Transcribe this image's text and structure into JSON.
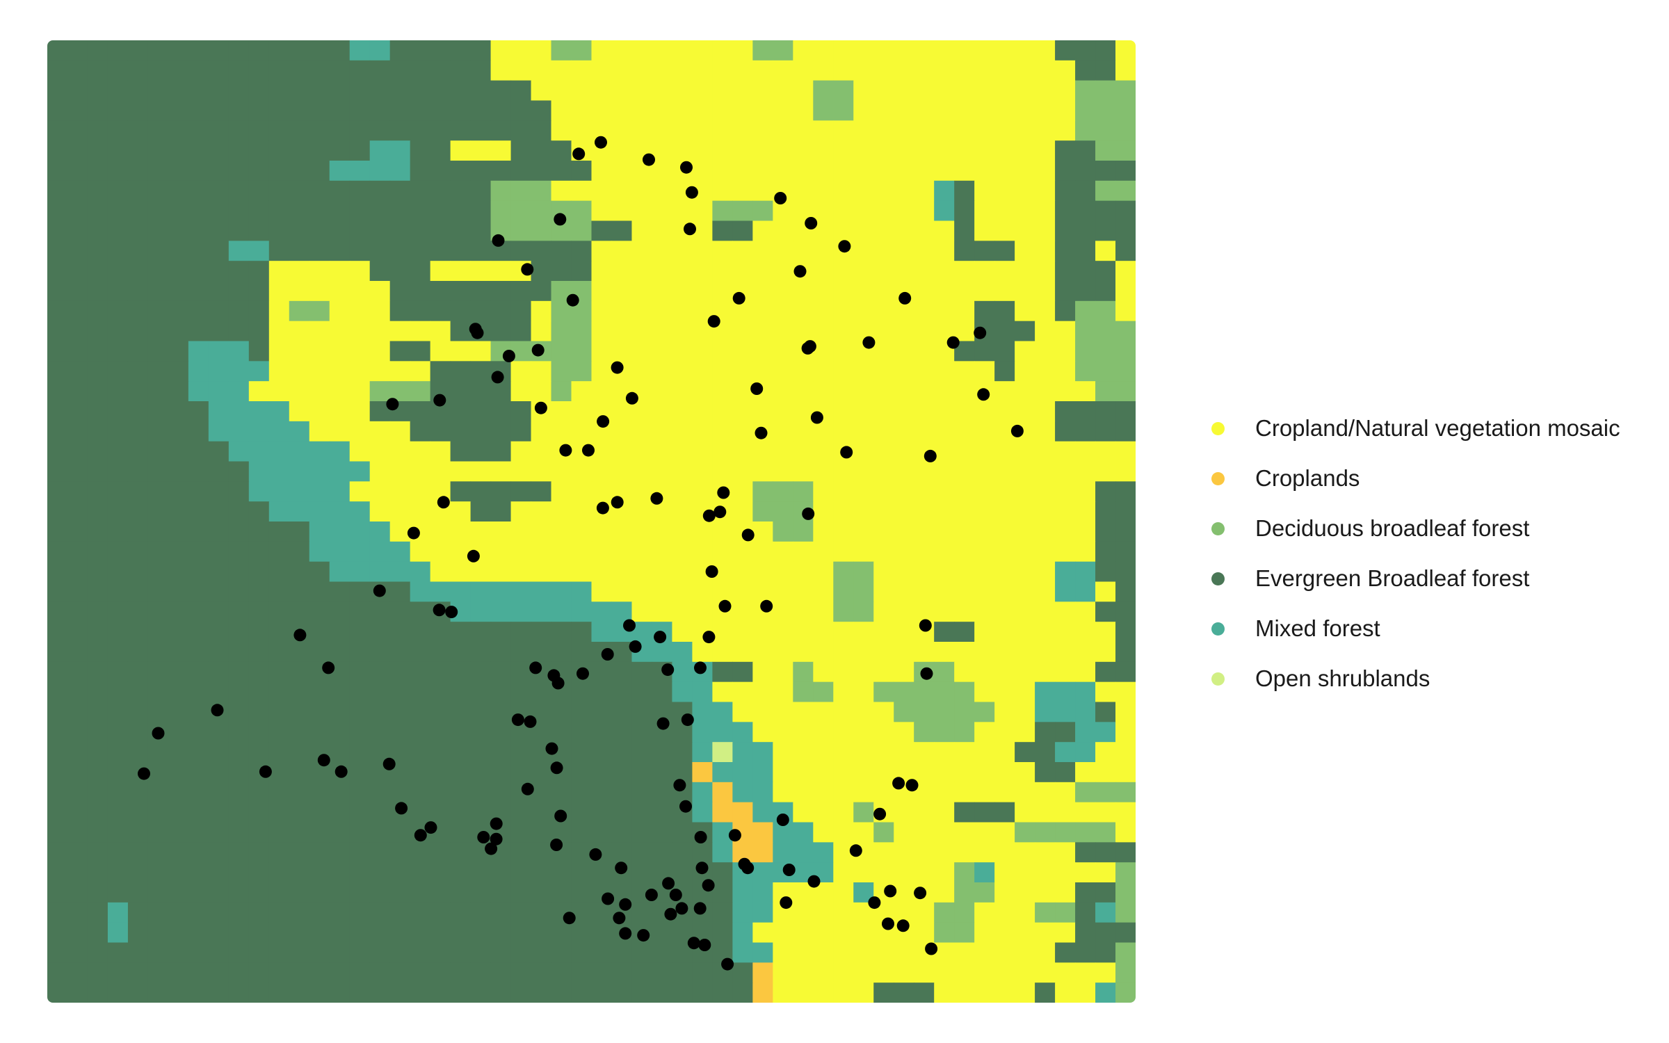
{
  "chart_data": {
    "type": "heatmap",
    "title": "",
    "xlabel": "",
    "ylabel": "",
    "grid_columns": 54,
    "grid_rows": 48,
    "legend_placement": "right",
    "classes": [
      {
        "code": "Y",
        "label": "Cropland/Natural vegetation mosaic",
        "color": "#f7fa34"
      },
      {
        "code": "O",
        "label": "Croplands",
        "color": "#fbc740"
      },
      {
        "code": "D",
        "label": "Deciduous broadleaf forest",
        "color": "#84bf6f"
      },
      {
        "code": "E",
        "label": "Evergreen Broadleaf forest",
        "color": "#4a7756"
      },
      {
        "code": "M",
        "label": "Mixed forest",
        "color": "#4aad98"
      },
      {
        "code": "S",
        "label": "Open shrublands",
        "color": "#d1ef84"
      }
    ],
    "land_cover_grid": [
      "EEEEEEEEEEEEEEEMMEEEEEYYYDDYYYYYYYYDDYYYYYYYYYYYYYEEEY",
      "EEEEEEEEEEEEEEEEEEEEEEYYYYYYYYYYYYYYYYYYYYYYYYYYYYYEEY",
      "EEEEEEEEEEEEEEEEEEEEEEEEYYYYYYYYYYYYYYDDYYYYYYYYYYYDDD",
      "EEEEEEEEEEEEEEEEEEEEEEEEEYYYYYYYYYYYYYDDYYYYYYYYYYYDDD",
      "EEEEEEEEEEEEEEEEEEEEEEEEEYYYYYYYYYYYYYYYYYYYYYYYYYYDDD",
      "EEEEEEEEEEEEEEEEMMEEYYYEEEYYYYYYYYYYYYYYYYYYYYYYYYEEDD",
      "EEEEEEEEEEEEEEMMMMEEEEEEEEEYYYYYYYYYYYYYYYYYYYYYYYEEEE",
      "EEEEEEEEEEEEEEEEEEEEEEDDDYYYYYYYYYYYYYYYYYYYMEYYYYEEDD",
      "EEEEEEEEEEEEEEEEEEEEEEDDDDDYYYYYYDDDYYYYYYYYMEYYYYEEEE",
      "EEEEEEEEEEEEEEEEEEEEEEDDDDDEEYYYYEEYYYYYYYYYYEYYYYEEEE",
      "EEEEEEEEEMMEEEEEEEEEEEEEEEEYYYYYYYYYYYYYYYYYYEEEYYEEYE",
      "EEEEEEEEEEEYYYYYEEEYYYYYEEEYYYYYYYYYYYYYYYYYYYYYYYEEEY",
      "EEEEEEEEEEEYYYYYYEEEEEEEEDDYYYYYYYYYYYYYYYYYYYYYYYEEEY",
      "EEEEEEEEEEEYDDYYYEEEEEEEYDDYYYYYYYYYYYYYYYYYYYEEYYEDDY",
      "EEEEEEEEEEEYYYYYYYYYEEEEYDDYYYYYYYYYYYYYYYYYYYEEEYYDDD",
      "EEEEEEEMMMEYYYYYYEEYYYDDDDDYYYYYYYYYYYYYYYYYYEEEYYYDDD",
      "EEEEEEEMMMMYYYYYYYYEEEEYYDDYYYYYYYYYYYYYYYYYYYYEYYYDDD",
      "EEEEEEEMMMYYYYYYDDDEEEEYYDYYYYYYYYYYYYYYYYYYYYYYYYYYDD",
      "EEEEEEEEMMMMYYYYEEEEEEEEYYYYYYYYYYYYYYYYYYYYYYYYYYEEEE",
      "EEEEEEEEMMMMMYYYYYEEEEEEYYYYYYYYYYYYYYYYYYYYYYYYYYEEEE",
      "EEEEEEEEEMMMMMMYYYYYEEEYYYYYYYYYYYYYYYYYYYYYYYYYYYYYYY",
      "EEEEEEEEEEMMMMMMYYYYYYYYYYYYYYYYYYYYYYYYYYYYYYYYYYYYYY",
      "EEEEEEEEEEMMMMMYYYYYEEEEEYYYYYYYYYYDDDYYYYYYYYYYYYYYEE",
      "EEEEEEEEEEEMMMMMYYYYYEEYYYYYYYYYYYYDDDYYYYYYYYYYYYYYEE",
      "EEEEEEEEEEEEEMMMMYYYYYYYYYYYYYYYYYYYDDYYYYYYYYYYYYYYEE",
      "EEEEEEEEEEEEEMMMMMYYYYYYYYYYYYYYYYYYYYYYYYYYYYYYYYYYEE",
      "EEEEEEEEEEEEEEMMMMMYYYYYYYYYYYYYYYYYYYYDDYYYYYYYYYMMEE",
      "EEEEEEEEEEEEEEEEEEMMMMMMMMMYYYYYYYYYYYYDDYYYYYYYYYMMYE",
      "EEEEEEEEEEEEEEEEEEEEMMMMMMMMMYYYYYYYYYYDDYYYYYYYYYYYEE",
      "EEEEEEEEEEEEEEEEEEEEEEEEEEEMMMMYYYYYYYYYYYYYEEYYYYYYYE",
      "EEEEEEEEEEEEEEEEEEEEEEEEEEEEEMMMYYYYYYYYYYYYYYYYYYYYYE",
      "EEEEEEEEEEEEEEEEEEEEEEEEEEEEEEEMMEEYYDYYYYYDDYYYYYYYEE",
      "EEEEEEEEEEEEEEEEEEEEEEEEEEEEEEEMMYYYYDDYYDDDDDYYYMMMYY",
      "EEEEEEEEEEEEEEEEEEEEEEEEEEEEEEEEMMYYYYYYYYDDDDDYYMMMEY",
      "EEEEEEEEEEEEEEEEEEEEEEEEEEEEEEEEMMMYYYYYYYYDDDYYYEEMMY",
      "EEEEEEEEEEEEEEEEEEEEEEEEEEEEEEEEMSMMYYYYYYYYYYYYEEMMYY",
      "EEEEEEEEEEEEEEEEEEEEEEEEEEEEEEEEOMMMYYYYYYYYYYYYYEEYYY",
      "EEEEEEEEEEEEEEEEEEEEEEEEEEEEEEEEMOMMYYYYYYYYYYYYYYYDDD",
      "EEEEEEEEEEEEEEEEEEEEEEEEEEEEEEEEMOOMMYYYDYYYYEEEYYYYYY",
      "EEEEEEEEEEEEEEEEEEEEEEEEEEEEEEEEEMOOMMYYYDYYYYYYDDDDDY",
      "EEEEEEEEEEEEEEEEEEEEEEEEEEEEEEEEEMOOMMMYYYYYYYYYYYYEEE",
      "EEEEEEEEEEEEEEEEEEEEEEEEEEEEEEEEEEMMMMMYYYYYYDMYYYYYYD",
      "EEEEEEEEEEEEEEEEEEEEEEEEEEEEEEEEEEMMYYYYMYYYYDDYYYYEED",
      "EEEMEEEEEEEEEEEEEEEEEEEEEEEEEEEEEEMMYYYYYYYYDDYYYDDEMD",
      "EEEMEEEEEEEEEEEEEEEEEEEEEEEEEEEEEEMYYYYYYYYYDDYYYYYEEE",
      "EEEEEEEEEEEEEEEEEEEEEEEEEEEEEEEEEEMMYYYYYYYYYYYYYYEEED",
      "EEEEEEEEEEEEEEEEEEEEEEEEEEEEEEEEEEEOYYYYYYYYYYYYYYYYYD",
      "EEEEEEEEEEEEEEEEEEEEEEEEEEEEEEEEEEEOYYYYYEEEYYYYYEYYMD"
    ],
    "points": [
      [
        88.8,
        38.1
      ],
      [
        101.9,
        36.0
      ],
      [
        156.2,
        34.8
      ],
      [
        200.6,
        38.0
      ],
      [
        254.2,
        37.4
      ],
      [
        270.1,
        38.0
      ],
      [
        314.2,
        37.6
      ],
      [
        325.3,
        39.9
      ],
      [
        343.0,
        41.3
      ],
      [
        352.4,
        40.9
      ],
      [
        400.8,
        41.4
      ],
      [
        407.7,
        42.0
      ],
      [
        412.5,
        41.5
      ],
      [
        441.4,
        38.9
      ],
      [
        468.1,
        37.8
      ],
      [
        432.5,
        35.3
      ],
      [
        443.8,
        35.4
      ],
      [
        467.8,
        41.8
      ],
      [
        479.7,
        45.6
      ],
      [
        515.1,
        44.6
      ],
      [
        525.5,
        45.6
      ],
      [
        531.1,
        44.9
      ],
      [
        527.3,
        43.0
      ],
      [
        586.6,
        39.8
      ],
      [
        601.6,
        43.0
      ],
      [
        625.0,
        48.0
      ],
      [
        678.8,
        44.8
      ],
      [
        743.0,
        42.1
      ],
      [
        764.9,
        40.2
      ],
      [
        760.0,
        44.8
      ],
      [
        794.6,
        38.7
      ],
      [
        772.5,
        45.9
      ],
      [
        774.6,
        44.2
      ],
      [
        786.4,
        46.0
      ],
      [
        802.0,
        44.3
      ],
      [
        812.2,
        47.2
      ],
      [
        782.2,
        38.6
      ],
      [
        808.0,
        32.9
      ],
      [
        806.9,
        30.4
      ],
      [
        811.4,
        21.6
      ],
      [
        860.2,
        18.4
      ],
      [
        891.3,
        20.3
      ],
      [
        832.4,
        15.7
      ],
      [
        857.0,
        15.2
      ],
      [
        788.0,
        13.4
      ],
      [
        754.9,
        15.7
      ],
      [
        732.5,
        10.7
      ],
      [
        700.9,
        15.9
      ],
      [
        691.7,
        12.0
      ],
      [
        701.7,
        9.5
      ],
      [
        673.6,
        8.2
      ],
      [
        707.3,
        19.6
      ],
      [
        734.3,
        21.4
      ],
      [
        655.9,
        20.4
      ],
      [
        698.8,
        16.0
      ],
      [
        699.2,
        24.6
      ],
      [
        610.6,
        27.6
      ],
      [
        618.1,
        24.5
      ],
      [
        622.7,
        29.4
      ],
      [
        660.8,
        29.4
      ],
      [
        621.3,
        23.5
      ],
      [
        608.2,
        24.7
      ],
      [
        643.9,
        25.7
      ],
      [
        651.9,
        18.1
      ],
      [
        635.6,
        13.4
      ],
      [
        612.6,
        14.6
      ],
      [
        590.4,
        9.8
      ],
      [
        592.3,
        7.9
      ],
      [
        587.2,
        6.6
      ],
      [
        552.7,
        6.2
      ],
      [
        508.6,
        5.3
      ],
      [
        488.3,
        5.9
      ],
      [
        471.1,
        9.3
      ],
      [
        482.9,
        13.5
      ],
      [
        441.1,
        11.9
      ],
      [
        424.2,
        16.4
      ],
      [
        413.8,
        17.5
      ],
      [
        395.2,
        15.2
      ],
      [
        414.4,
        10.4
      ],
      [
        450.9,
        16.1
      ],
      [
        523.7,
        17.0
      ],
      [
        537.3,
        18.6
      ],
      [
        523.8,
        24.0
      ],
      [
        560.0,
        23.8
      ],
      [
        563.0,
        31.0
      ],
      [
        570.1,
        32.7
      ],
      [
        607.9,
        31.0
      ],
      [
        600.0,
        32.6
      ],
      [
        565.9,
        35.5
      ],
      [
        588.4,
        35.3
      ],
      [
        581.1,
        38.7
      ],
      [
        583.0,
        45.1
      ],
      [
        572.8,
        45.4
      ],
      [
        547.7,
        46.5
      ],
      [
        531.1,
        46.4
      ],
      [
        514.8,
        31.9
      ],
      [
        492.0,
        32.9
      ],
      [
        448.7,
        32.6
      ],
      [
        465.4,
        33.0
      ],
      [
        469.4,
        33.4
      ],
      [
        503.8,
        42.3
      ],
      [
        463.6,
        36.8
      ],
      [
        471.7,
        40.3
      ],
      [
        412.6,
        40.7
      ],
      [
        360.1,
        29.6
      ],
      [
        371.4,
        29.7
      ],
      [
        391.6,
        26.8
      ],
      [
        364.1,
        24.0
      ],
      [
        336.7,
        25.6
      ],
      [
        305.3,
        28.6
      ],
      [
        232.2,
        30.9
      ],
      [
        258.3,
        32.6
      ],
      [
        317.2,
        18.9
      ],
      [
        360.6,
        18.7
      ],
      [
        393.4,
        15.0
      ],
      [
        453.6,
        19.1
      ],
      [
        476.3,
        21.3
      ],
      [
        497.1,
        21.3
      ],
      [
        510.6,
        19.8
      ],
      [
        510.5,
        24.3
      ],
      [
        534.8,
        30.4
      ],
      [
        540.3,
        31.5
      ],
      [
        600.4,
        41.4
      ],
      [
        607.4,
        43.9
      ],
      [
        681.6,
        43.1
      ],
      [
        704.5,
        43.7
      ],
      [
        631.9,
        41.3
      ],
      [
        640.6,
        42.8
      ],
      [
        643.6,
        43.0
      ],
      [
        675.9,
        40.5
      ],
      [
        599.8,
        45.1
      ],
      [
        604.0,
        47.0
      ],
      [
        594.1,
        46.9
      ],
      [
        577.5,
        44.4
      ],
      [
        555.2,
        44.4
      ],
      [
        570.7,
        43.8
      ]
    ]
  },
  "legend": [
    {
      "label": "Cropland/Natural vegetation mosaic",
      "color": "#f7fa34"
    },
    {
      "label": "Croplands",
      "color": "#fbc740"
    },
    {
      "label": "Deciduous broadleaf forest",
      "color": "#84bf6f"
    },
    {
      "label": "Evergreen Broadleaf forest",
      "color": "#4a7756"
    },
    {
      "label": "Mixed forest",
      "color": "#4aad98"
    },
    {
      "label": "Open shrublands",
      "color": "#d1ef84"
    }
  ]
}
